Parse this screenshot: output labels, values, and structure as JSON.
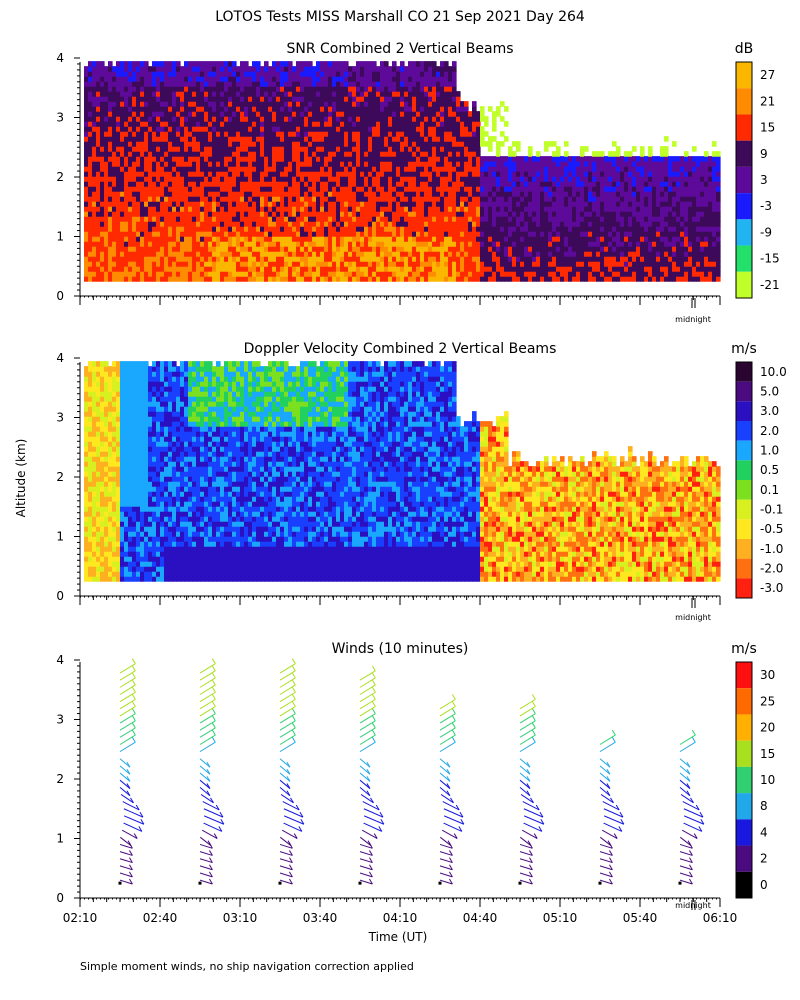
{
  "figure": {
    "title": "LOTOS Tests MISS Marshall CO  21 Sep 2021 Day 264",
    "shared_ylabel": "Altitude (km)",
    "xlabel": "Time (UT)",
    "footnote": "Simple moment winds, no ship navigation correction applied",
    "midnight_label": "midnight"
  },
  "chart_data": [
    {
      "type": "heatmap",
      "title": "SNR Combined 2 Vertical Beams",
      "ylabel": "Altitude (km)",
      "y_ticks": [
        0,
        1,
        2,
        3,
        4
      ],
      "ylim": [
        0,
        4
      ],
      "x_range_minutes_after_0210": [
        0,
        240
      ],
      "colorbar": {
        "unit": "dB",
        "tick_labels": [
          "27",
          "21",
          "15",
          "9",
          "3",
          "-3",
          "-9",
          "-15",
          "-21"
        ],
        "colors": [
          "#fbb700",
          "#ff8c00",
          "#ff2a00",
          "#3d0a5a",
          "#5d0a9a",
          "#1a1aff",
          "#22b4f0",
          "#22e06a",
          "#c0ff2a"
        ]
      },
      "description_bands": [
        {
          "time": [
            "02:10",
            "04:40"
          ],
          "alt_km": [
            0.25,
            4.0
          ],
          "snr_db": "-3 to 15"
        },
        {
          "time": [
            "02:50",
            "04:10"
          ],
          "alt_km": [
            0.3,
            1.1
          ],
          "snr_db": "15 to 21"
        },
        {
          "time": [
            "04:40",
            "06:05"
          ],
          "alt_km": [
            0.25,
            2.5
          ],
          "snr_db": "-15 to 9"
        }
      ]
    },
    {
      "type": "heatmap",
      "title": "Doppler Velocity Combined 2 Vertical Beams",
      "ylabel": "Altitude (km)",
      "y_ticks": [
        0,
        1,
        2,
        3,
        4
      ],
      "ylim": [
        0,
        4
      ],
      "x_range_minutes_after_0210": [
        0,
        240
      ],
      "colorbar": {
        "unit": "m/s",
        "tick_labels": [
          "10.0",
          "5.0",
          "3.0",
          "2.0",
          "1.0",
          "0.5",
          "0.1",
          "-0.1",
          "-0.5",
          "-1.0",
          "-2.0",
          "-3.0"
        ],
        "colors": [
          "#2a0530",
          "#4a0a80",
          "#2a10c0",
          "#1a40ff",
          "#1aa8ff",
          "#22d060",
          "#7ae020",
          "#d8f020",
          "#ffe820",
          "#ffb020",
          "#ff7010",
          "#ff2010"
        ]
      }
    },
    {
      "type": "barbs",
      "title": "Winds (10 minutes)",
      "ylabel": "Altitude (km)",
      "y_ticks": [
        0,
        1,
        2,
        3,
        4
      ],
      "ylim": [
        0,
        4
      ],
      "x_tick_labels": [
        "02:10",
        "02:40",
        "03:10",
        "03:40",
        "04:10",
        "04:40",
        "05:10",
        "05:40",
        "06:10"
      ],
      "colorbar": {
        "unit": "m/s",
        "tick_labels": [
          "30",
          "25",
          "20",
          "15",
          "10",
          "8",
          "4",
          "2",
          "0"
        ],
        "colors": [
          "#ff1010",
          "#ff6a00",
          "#ffb000",
          "#a8e020",
          "#30d070",
          "#20a8e8",
          "#1818e0",
          "#4a0a80",
          "#000000"
        ]
      },
      "profiles": [
        {
          "time_min": 15,
          "alt_top_km": 3.9
        },
        {
          "time_min": 45,
          "alt_top_km": 3.9
        },
        {
          "time_min": 75,
          "alt_top_km": 3.9
        },
        {
          "time_min": 105,
          "alt_top_km": 3.7
        },
        {
          "time_min": 135,
          "alt_top_km": 3.3
        },
        {
          "time_min": 165,
          "alt_top_km": 3.2
        },
        {
          "time_min": 195,
          "alt_top_km": 2.6
        },
        {
          "time_min": 225,
          "alt_top_km": 2.6
        }
      ]
    }
  ]
}
